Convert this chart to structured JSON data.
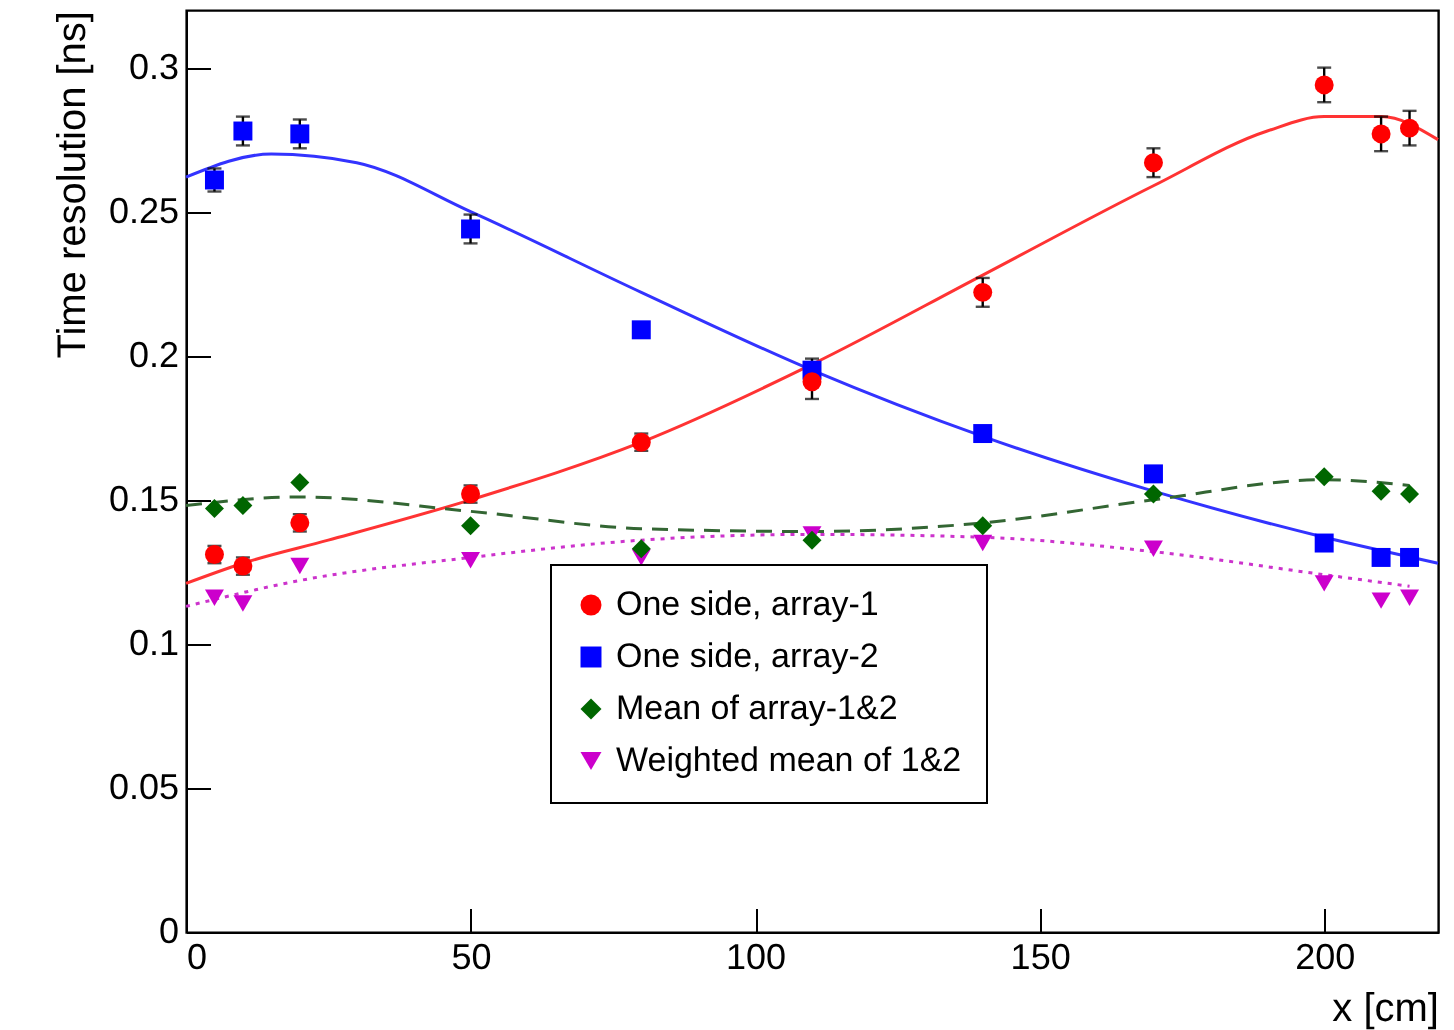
{
  "chart_data": {
    "type": "scatter",
    "xlabel": "x [cm]",
    "ylabel": "Time resolution [ns]",
    "xlim": [
      0,
      220
    ],
    "xticks": [
      0,
      50,
      100,
      150,
      200
    ],
    "ylim": [
      0,
      0.32
    ],
    "yticks": [
      0,
      0.05,
      0.1,
      0.15,
      0.2,
      0.25,
      0.3
    ],
    "legend": "bottom",
    "series": [
      {
        "name": "One side, array-1",
        "type": "scatter",
        "marker": "circle",
        "color": "#ff0000",
        "x": [
          5,
          10,
          20,
          50,
          80,
          110,
          140,
          170,
          200,
          210,
          215
        ],
        "values": [
          0.131,
          0.127,
          0.142,
          0.152,
          0.17,
          0.191,
          0.222,
          0.267,
          0.294,
          0.277,
          0.279
        ],
        "errors": [
          0.003,
          0.003,
          0.003,
          0.003,
          0.003,
          0.006,
          0.005,
          0.005,
          0.006,
          0.006,
          0.006
        ]
      },
      {
        "name": "One side, array-2",
        "type": "scatter",
        "marker": "square",
        "color": "#0000ff",
        "x": [
          5,
          10,
          20,
          50,
          80,
          110,
          140,
          170,
          200,
          210,
          215
        ],
        "values": [
          0.261,
          0.278,
          0.277,
          0.244,
          0.209,
          0.195,
          0.173,
          0.159,
          0.135,
          0.13,
          0.13
        ],
        "errors": [
          0.004,
          0.005,
          0.005,
          0.005,
          null,
          0.004,
          null,
          null,
          null,
          null,
          null
        ]
      },
      {
        "name": "Mean of array-1&2",
        "type": "scatter",
        "marker": "diamond",
        "color": "#006600",
        "x": [
          5,
          10,
          20,
          50,
          80,
          110,
          140,
          170,
          200,
          210,
          215
        ],
        "values": [
          0.147,
          0.148,
          0.156,
          0.141,
          0.133,
          0.136,
          0.141,
          0.152,
          0.158,
          0.153,
          0.152
        ]
      },
      {
        "name": "Weighted mean of 1&2",
        "type": "scatter",
        "marker": "triangle-down",
        "color": "#cc00cc",
        "x": [
          5,
          10,
          20,
          50,
          80,
          110,
          140,
          170,
          200,
          210,
          215
        ],
        "values": [
          0.116,
          0.114,
          0.127,
          0.129,
          0.13,
          0.138,
          0.135,
          0.133,
          0.121,
          0.115,
          0.116
        ]
      },
      {
        "type": "line",
        "line_style": "solid",
        "color": "#ff3333",
        "x": [
          0,
          10,
          25,
          50,
          80,
          110,
          140,
          170,
          190,
          200,
          210,
          220
        ],
        "values": [
          0.121,
          0.128,
          0.136,
          0.15,
          0.17,
          0.197,
          0.228,
          0.259,
          0.278,
          0.283,
          0.283,
          0.275
        ]
      },
      {
        "type": "line",
        "line_style": "solid",
        "color": "#3333ff",
        "x": [
          0,
          15,
          30,
          50,
          80,
          110,
          140,
          170,
          200,
          220
        ],
        "values": [
          0.262,
          0.27,
          0.267,
          0.25,
          0.222,
          0.195,
          0.172,
          0.153,
          0.137,
          0.128
        ]
      },
      {
        "type": "line",
        "line_style": "dashed",
        "color": "#336633",
        "x": [
          0,
          20,
          50,
          80,
          110,
          140,
          170,
          200,
          215
        ],
        "values": [
          0.148,
          0.151,
          0.146,
          0.14,
          0.139,
          0.142,
          0.15,
          0.157,
          0.155
        ]
      },
      {
        "type": "line",
        "line_style": "dotted",
        "color": "#cc33cc",
        "x": [
          0,
          20,
          50,
          80,
          110,
          140,
          170,
          200,
          215
        ],
        "values": [
          0.113,
          0.122,
          0.13,
          0.136,
          0.138,
          0.137,
          0.132,
          0.124,
          0.12
        ]
      }
    ]
  }
}
